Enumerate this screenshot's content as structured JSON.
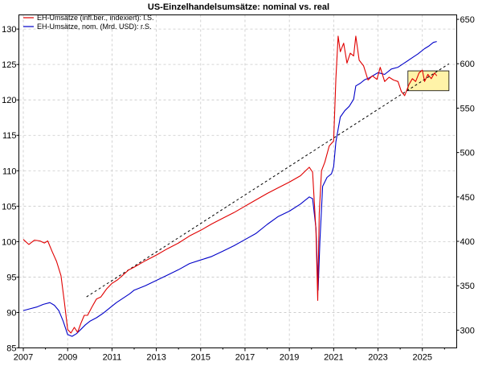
{
  "chart_data": {
    "type": "line",
    "title": "US-Einzelhandelsumsätze: nominal vs. real",
    "legend_position": "top-left",
    "grid": true,
    "x_range": [
      2006.8,
      2026.55
    ],
    "x_ticks": [
      "2007",
      "2009",
      "2011",
      "2013",
      "2015",
      "2017",
      "2019",
      "2021",
      "2023",
      "2025"
    ],
    "y_left": {
      "min": 85,
      "max": 132,
      "ticks": [
        "85",
        "90",
        "95",
        "100",
        "105",
        "110",
        "115",
        "120",
        "125",
        "130"
      ]
    },
    "y_right": {
      "min": 280,
      "max": 655,
      "ticks": [
        "300",
        "350",
        "400",
        "450",
        "500",
        "550",
        "600",
        "650"
      ]
    },
    "series": [
      {
        "name": "EH-Umsätze (infl.ber., indexiert): l.S.",
        "axis": "left",
        "color": "#e00000",
        "points": [
          [
            2007.0,
            100.3
          ],
          [
            2007.25,
            99.6
          ],
          [
            2007.5,
            100.2
          ],
          [
            2007.75,
            100.1
          ],
          [
            2007.95,
            99.8
          ],
          [
            2008.1,
            100.1
          ],
          [
            2008.3,
            98.6
          ],
          [
            2008.5,
            97.2
          ],
          [
            2008.7,
            95.2
          ],
          [
            2008.85,
            91.5
          ],
          [
            2009.0,
            87.6
          ],
          [
            2009.15,
            87.1
          ],
          [
            2009.3,
            87.9
          ],
          [
            2009.45,
            87.2
          ],
          [
            2009.6,
            88.5
          ],
          [
            2009.75,
            89.6
          ],
          [
            2009.9,
            89.6
          ],
          [
            2010.1,
            90.8
          ],
          [
            2010.3,
            91.9
          ],
          [
            2010.5,
            92.2
          ],
          [
            2010.75,
            93.3
          ],
          [
            2011.0,
            94.1
          ],
          [
            2011.25,
            94.6
          ],
          [
            2011.5,
            95.3
          ],
          [
            2011.75,
            96.0
          ],
          [
            2012.0,
            96.4
          ],
          [
            2012.5,
            97.3
          ],
          [
            2013.0,
            98.1
          ],
          [
            2013.5,
            99.0
          ],
          [
            2014.0,
            99.8
          ],
          [
            2014.5,
            100.8
          ],
          [
            2015.0,
            101.6
          ],
          [
            2015.5,
            102.5
          ],
          [
            2016.0,
            103.3
          ],
          [
            2016.5,
            104.1
          ],
          [
            2017.0,
            105.0
          ],
          [
            2017.5,
            105.9
          ],
          [
            2018.0,
            106.8
          ],
          [
            2018.5,
            107.6
          ],
          [
            2019.0,
            108.4
          ],
          [
            2019.5,
            109.3
          ],
          [
            2019.9,
            110.5
          ],
          [
            2020.05,
            109.8
          ],
          [
            2020.2,
            101.5
          ],
          [
            2020.28,
            91.7
          ],
          [
            2020.35,
            104.0
          ],
          [
            2020.45,
            110.0
          ],
          [
            2020.6,
            111.2
          ],
          [
            2020.8,
            113.5
          ],
          [
            2021.0,
            114.2
          ],
          [
            2021.1,
            123.0
          ],
          [
            2021.2,
            129.0
          ],
          [
            2021.3,
            126.8
          ],
          [
            2021.45,
            128.0
          ],
          [
            2021.6,
            125.2
          ],
          [
            2021.75,
            126.6
          ],
          [
            2021.9,
            126.2
          ],
          [
            2022.0,
            129.0
          ],
          [
            2022.15,
            125.6
          ],
          [
            2022.35,
            124.8
          ],
          [
            2022.55,
            122.8
          ],
          [
            2022.75,
            123.4
          ],
          [
            2022.95,
            122.9
          ],
          [
            2023.1,
            124.6
          ],
          [
            2023.3,
            122.6
          ],
          [
            2023.5,
            123.2
          ],
          [
            2023.7,
            122.8
          ],
          [
            2023.9,
            122.6
          ],
          [
            2024.05,
            121.2
          ],
          [
            2024.2,
            120.6
          ],
          [
            2024.4,
            122.2
          ],
          [
            2024.55,
            123.0
          ],
          [
            2024.7,
            122.6
          ],
          [
            2024.85,
            123.8
          ],
          [
            2025.0,
            124.2
          ],
          [
            2025.1,
            122.6
          ],
          [
            2025.25,
            123.6
          ],
          [
            2025.4,
            123.0
          ],
          [
            2025.55,
            123.8
          ],
          [
            2025.65,
            123.4
          ]
        ]
      },
      {
        "name": "EH-Umsätze, nom. (Mrd. USD): r.S.",
        "axis": "right",
        "color": "#0000c8",
        "points": [
          [
            2007.0,
            322.0
          ],
          [
            2007.3,
            324.0
          ],
          [
            2007.6,
            326.0
          ],
          [
            2007.9,
            329.0
          ],
          [
            2008.2,
            331.0
          ],
          [
            2008.4,
            328.0
          ],
          [
            2008.6,
            322.0
          ],
          [
            2008.8,
            310.0
          ],
          [
            2009.0,
            295.0
          ],
          [
            2009.2,
            293.0
          ],
          [
            2009.4,
            296.0
          ],
          [
            2009.6,
            301.0
          ],
          [
            2009.8,
            306.0
          ],
          [
            2010.0,
            310.0
          ],
          [
            2010.3,
            314.0
          ],
          [
            2010.6,
            319.0
          ],
          [
            2010.9,
            325.0
          ],
          [
            2011.2,
            331.0
          ],
          [
            2011.5,
            336.0
          ],
          [
            2011.8,
            341.0
          ],
          [
            2012.0,
            345.0
          ],
          [
            2012.5,
            350.0
          ],
          [
            2013.0,
            356.0
          ],
          [
            2013.5,
            362.0
          ],
          [
            2014.0,
            368.0
          ],
          [
            2014.5,
            375.0
          ],
          [
            2015.0,
            379.0
          ],
          [
            2015.5,
            383.0
          ],
          [
            2016.0,
            389.0
          ],
          [
            2016.5,
            395.0
          ],
          [
            2017.0,
            402.0
          ],
          [
            2017.5,
            409.0
          ],
          [
            2018.0,
            419.0
          ],
          [
            2018.5,
            428.0
          ],
          [
            2019.0,
            434.0
          ],
          [
            2019.5,
            442.0
          ],
          [
            2019.9,
            450.0
          ],
          [
            2020.05,
            448.0
          ],
          [
            2020.2,
            415.0
          ],
          [
            2020.3,
            345.0
          ],
          [
            2020.38,
            400.0
          ],
          [
            2020.5,
            462.0
          ],
          [
            2020.7,
            472.0
          ],
          [
            2020.9,
            476.0
          ],
          [
            2021.0,
            484.0
          ],
          [
            2021.1,
            512.0
          ],
          [
            2021.3,
            540.0
          ],
          [
            2021.5,
            547.0
          ],
          [
            2021.7,
            552.0
          ],
          [
            2021.9,
            560.0
          ],
          [
            2022.0,
            575.0
          ],
          [
            2022.2,
            578.0
          ],
          [
            2022.4,
            582.0
          ],
          [
            2022.6,
            584.0
          ],
          [
            2022.8,
            587.0
          ],
          [
            2023.0,
            590.0
          ],
          [
            2023.3,
            588.0
          ],
          [
            2023.6,
            594.0
          ],
          [
            2023.9,
            596.0
          ],
          [
            2024.2,
            601.0
          ],
          [
            2024.5,
            606.0
          ],
          [
            2024.8,
            611.0
          ],
          [
            2025.1,
            617.0
          ],
          [
            2025.3,
            620.0
          ],
          [
            2025.5,
            624.0
          ],
          [
            2025.65,
            625.0
          ]
        ]
      },
      {
        "name": "Trend",
        "axis": "left",
        "color": "#000000",
        "dashed": true,
        "points": [
          [
            2009.85,
            92.2
          ],
          [
            2026.2,
            125.1
          ]
        ]
      }
    ],
    "highlight_box": {
      "x": [
        2024.35,
        2026.2
      ],
      "y_left": [
        121.3,
        124.1
      ],
      "color": "#fff3a8"
    }
  }
}
